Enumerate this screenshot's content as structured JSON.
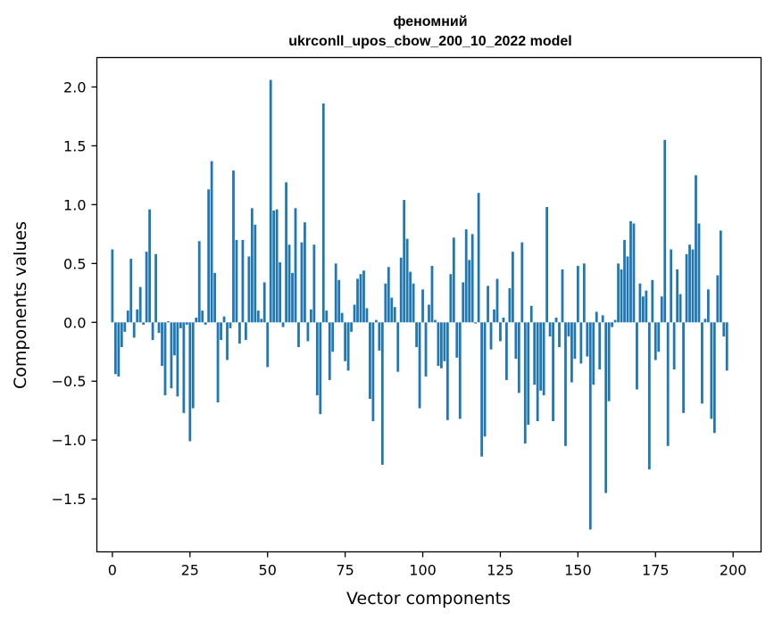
{
  "chart_data": {
    "type": "bar",
    "title": "феномний",
    "subtitle": "ukrconll_upos_cbow_200_10_2022 model",
    "xlabel": "Vector components",
    "ylabel": "Components values",
    "xlim": [
      -5,
      209
    ],
    "ylim": [
      -1.95,
      2.25
    ],
    "xticks": [
      0,
      25,
      50,
      75,
      100,
      125,
      150,
      175,
      200
    ],
    "xtick_labels": [
      "0",
      "25",
      "50",
      "75",
      "100",
      "125",
      "150",
      "175",
      "200"
    ],
    "yticks": [
      2.0,
      1.5,
      1.0,
      0.5,
      0.0,
      -0.5,
      -1.0,
      -1.5
    ],
    "ytick_labels": [
      "2.0",
      "1.5",
      "1.0",
      "0.5",
      "0.0",
      "−0.5",
      "−1.0",
      "−1.5"
    ],
    "grid": false,
    "color": "#1f77b4",
    "values": [
      0.62,
      -0.44,
      -0.46,
      -0.21,
      -0.08,
      0.1,
      0.54,
      -0.13,
      0.11,
      0.3,
      -0.02,
      0.6,
      0.96,
      -0.15,
      0.58,
      -0.09,
      -0.37,
      -0.62,
      0.01,
      -0.56,
      -0.28,
      -0.63,
      -0.05,
      -0.77,
      -0.02,
      -1.01,
      -0.73,
      0.04,
      0.69,
      0.1,
      -0.02,
      1.13,
      1.37,
      0.42,
      -0.68,
      -0.15,
      0.05,
      -0.32,
      -0.05,
      1.29,
      0.7,
      -0.18,
      0.7,
      -0.15,
      0.56,
      0.97,
      0.83,
      0.1,
      0.03,
      0.34,
      -0.38,
      2.06,
      0.95,
      0.96,
      0.51,
      -0.04,
      1.19,
      0.66,
      0.42,
      0.97,
      -0.21,
      0.68,
      0.85,
      -0.16,
      0.11,
      0.66,
      -0.62,
      -0.78,
      1.86,
      0.1,
      -0.49,
      -0.25,
      0.5,
      0.36,
      0.08,
      -0.33,
      -0.41,
      -0.08,
      0.15,
      0.37,
      0.41,
      0.44,
      0.12,
      -0.65,
      -0.84,
      0.02,
      -0.24,
      -1.21,
      0.33,
      0.47,
      0.21,
      0.13,
      -0.42,
      0.55,
      1.04,
      0.71,
      0.43,
      0.33,
      -0.21,
      -0.73,
      0.28,
      -0.46,
      0.15,
      0.48,
      0.02,
      -0.37,
      -0.39,
      -0.33,
      -0.83,
      0.41,
      0.72,
      -0.3,
      -0.82,
      0.34,
      0.79,
      0.53,
      0.75,
      -0.01,
      1.1,
      -1.14,
      -0.97,
      0.31,
      -0.23,
      0.11,
      0.37,
      -0.16,
      0.04,
      -0.49,
      0.29,
      0.6,
      -0.31,
      -0.6,
      0.68,
      -1.03,
      -0.87,
      0.14,
      -0.53,
      -0.84,
      -0.58,
      -0.62,
      0.98,
      -0.12,
      -0.84,
      0.04,
      -0.21,
      0.45,
      -1.05,
      -0.12,
      -0.51,
      -0.31,
      0.48,
      -0.35,
      0.5,
      -0.29,
      -1.76,
      -0.53,
      0.09,
      -0.4,
      0.06,
      -1.45,
      -0.67,
      -0.04,
      0.02,
      0.5,
      0.45,
      0.7,
      0.56,
      0.86,
      0.84,
      -0.57,
      0.33,
      0.22,
      0.27,
      -1.25,
      0.36,
      -0.32,
      -0.25,
      0.22,
      1.55,
      -1.05,
      0.62,
      -0.4,
      0.45,
      0.24,
      -0.77,
      0.58,
      0.66,
      0.62,
      1.25,
      0.84,
      -0.69,
      0.03,
      0.28,
      -0.82,
      -0.94,
      0.4,
      0.78,
      -0.12,
      -0.41
    ]
  }
}
